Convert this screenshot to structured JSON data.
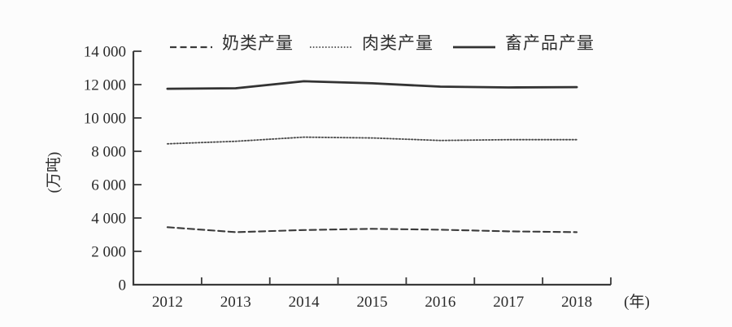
{
  "figure": {
    "background": "#fcfcfc",
    "ink_color": "#3a3a3a"
  },
  "chart_data": {
    "type": "line",
    "title": "",
    "x": [
      "2012",
      "2013",
      "2014",
      "2015",
      "2016",
      "2017",
      "2018"
    ],
    "x_axis_unit": "(年)",
    "y_axis_unit": "(万吨)",
    "ylim": [
      0,
      14000
    ],
    "y_ticks": [
      0,
      2000,
      4000,
      6000,
      8000,
      10000,
      12000,
      14000
    ],
    "y_tick_labels": [
      "0",
      "2 000",
      "4 000",
      "6 000",
      "8 000",
      "10 000",
      "12 000",
      "14 000"
    ],
    "grid": false,
    "legend_position": "top",
    "series": [
      {
        "name": "奶类产量",
        "style": "dashed",
        "values": [
          3450,
          3150,
          3280,
          3350,
          3300,
          3200,
          3150
        ]
      },
      {
        "name": "肉类产量",
        "style": "dotted",
        "values": [
          8450,
          8600,
          8850,
          8800,
          8650,
          8700,
          8700
        ]
      },
      {
        "name": "畜产品产量",
        "style": "solid",
        "values": [
          11750,
          11780,
          12200,
          12080,
          11880,
          11830,
          11850
        ]
      }
    ]
  }
}
